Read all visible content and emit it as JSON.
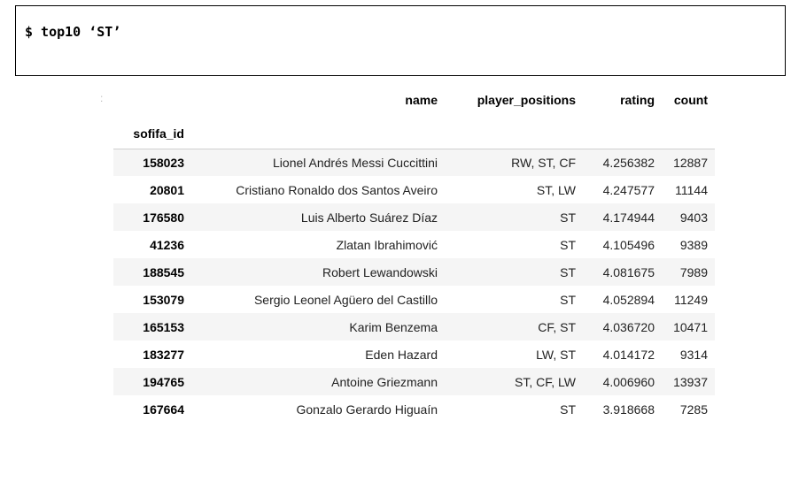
{
  "command": {
    "text": "$ top10 ‘ST’"
  },
  "output_marker": ":",
  "table": {
    "columns": [
      "name",
      "player_positions",
      "rating",
      "count"
    ],
    "index_name": "sofifa_id",
    "rows": [
      {
        "sofifa_id": "158023",
        "name": "Lionel Andrés Messi Cuccittini",
        "player_positions": "RW, ST, CF",
        "rating": "4.256382",
        "count": "12887"
      },
      {
        "sofifa_id": "20801",
        "name": "Cristiano Ronaldo dos Santos Aveiro",
        "player_positions": "ST, LW",
        "rating": "4.247577",
        "count": "11144"
      },
      {
        "sofifa_id": "176580",
        "name": "Luis Alberto Suárez Díaz",
        "player_positions": "ST",
        "rating": "4.174944",
        "count": "9403"
      },
      {
        "sofifa_id": "41236",
        "name": "Zlatan Ibrahimović",
        "player_positions": "ST",
        "rating": "4.105496",
        "count": "9389"
      },
      {
        "sofifa_id": "188545",
        "name": "Robert Lewandowski",
        "player_positions": "ST",
        "rating": "4.081675",
        "count": "7989"
      },
      {
        "sofifa_id": "153079",
        "name": "Sergio Leonel Agüero del Castillo",
        "player_positions": "ST",
        "rating": "4.052894",
        "count": "11249"
      },
      {
        "sofifa_id": "165153",
        "name": "Karim Benzema",
        "player_positions": "CF, ST",
        "rating": "4.036720",
        "count": "10471"
      },
      {
        "sofifa_id": "183277",
        "name": "Eden Hazard",
        "player_positions": "LW, ST",
        "rating": "4.014172",
        "count": "9314"
      },
      {
        "sofifa_id": "194765",
        "name": "Antoine Griezmann",
        "player_positions": "ST, CF, LW",
        "rating": "4.006960",
        "count": "13937"
      },
      {
        "sofifa_id": "167664",
        "name": "Gonzalo Gerardo Higuaín",
        "player_positions": "ST",
        "rating": "3.918668",
        "count": "7285"
      }
    ]
  }
}
